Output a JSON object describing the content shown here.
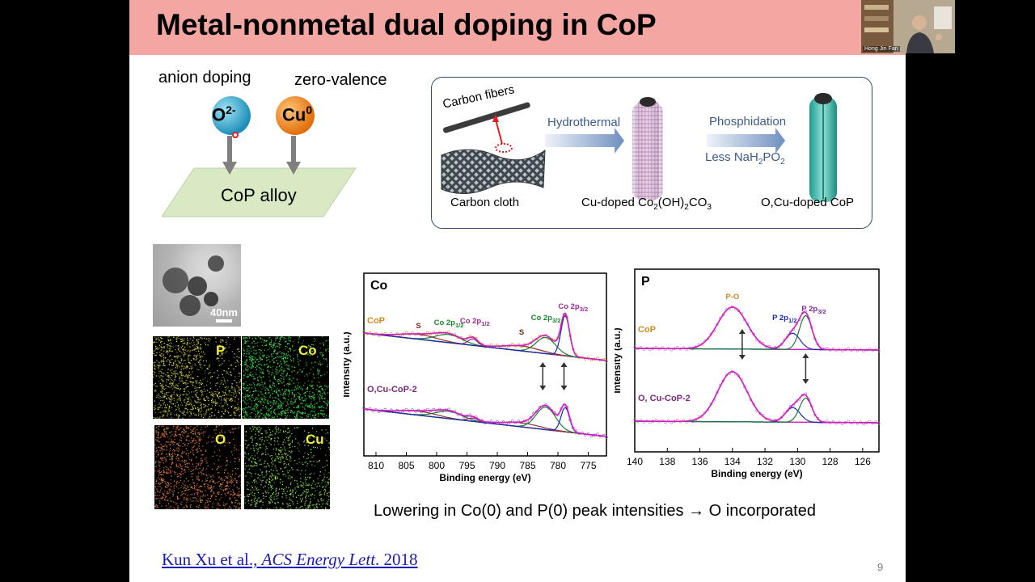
{
  "slide": {
    "title": "Metal-nonmetal dual doping in CoP",
    "page_number": "9"
  },
  "webcam": {
    "name": "Hong Jin Fan"
  },
  "schematic": {
    "anion_label": "anion doping",
    "zero_label": "zero-valence",
    "o_ion": "O",
    "o_sup": "2-",
    "cu_ion": "Cu",
    "cu_sup": "0",
    "substrate": "CoP alloy"
  },
  "process": {
    "carbon_fibers": "Carbon fibers",
    "carbon_cloth": "Carbon cloth",
    "step1": "Hydrothermal",
    "step2": "Phosphidation",
    "step2_note_parts": [
      "Less NaH",
      "2",
      "PO",
      "2"
    ],
    "product1_parts": [
      "Cu-doped Co",
      "2",
      "(OH)",
      "2",
      "CO",
      "3"
    ],
    "product2": "O,Cu-doped CoP"
  },
  "microscopy": {
    "scale_bar": "40nm",
    "maps": [
      "P",
      "Co",
      "O",
      "Cu"
    ]
  },
  "chart_data": [
    {
      "type": "line",
      "title": "Co",
      "xlabel": "Binding energy (eV)",
      "ylabel": "Intensity (a.u.)",
      "xlim": [
        812,
        772
      ],
      "xticks": [
        810,
        805,
        800,
        795,
        790,
        785,
        780,
        775
      ],
      "series": [
        {
          "name": "CoP",
          "peaks": [
            {
              "label": "S",
              "x": 803
            },
            {
              "label": "Co 2p1/2",
              "x": 798
            },
            {
              "label": "Co 2p1/2",
              "x": 794
            },
            {
              "label": "S",
              "x": 786
            },
            {
              "label": "Co 2p3/2",
              "x": 782
            },
            {
              "label": "Co 2p3/2",
              "x": 778.8
            }
          ]
        },
        {
          "name": "O,Cu-CoP-2"
        }
      ],
      "peak_labels": [
        {
          "main": "S",
          "sub": ""
        },
        {
          "main": "Co 2p",
          "sub": "1/2"
        },
        {
          "main": "Co 2p",
          "sub": "1/2"
        },
        {
          "main": "S",
          "sub": ""
        },
        {
          "main": "Co 2p",
          "sub": "3/2"
        },
        {
          "main": "Co 2p",
          "sub": "3/2"
        }
      ]
    },
    {
      "type": "line",
      "title": "P",
      "xlabel": "Binding energy (eV)",
      "ylabel": "Intensity (a.u.)",
      "xlim": [
        140,
        125
      ],
      "xticks": [
        140,
        138,
        136,
        134,
        132,
        130,
        128,
        126
      ],
      "series": [
        {
          "name": "CoP"
        },
        {
          "name": "O, Cu-CoP-2"
        }
      ],
      "peak_labels": [
        {
          "main": "P-O",
          "sub": ""
        },
        {
          "main": "P 2p",
          "sub": "1/2"
        },
        {
          "main": "P 2p",
          "sub": "3/2"
        }
      ]
    }
  ],
  "caption": "Lowering in Co(0) and P(0) peak intensities → O incorporated",
  "reference": {
    "authors": "Kun Xu et al., ",
    "journal": "ACS Energy Lett",
    "year": ". 2018"
  }
}
